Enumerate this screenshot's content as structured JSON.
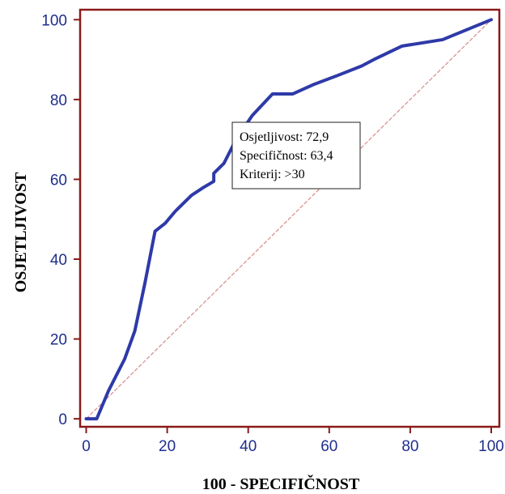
{
  "chart_data": {
    "type": "line",
    "xlabel": "100 - SPECIFIČNOST",
    "ylabel": "OSJETLJIVOST",
    "xlim": [
      -1.5,
      102
    ],
    "ylim": [
      -2,
      102.5
    ],
    "xticks": [
      0,
      20,
      40,
      60,
      80,
      100
    ],
    "yticks": [
      0,
      20,
      40,
      60,
      80,
      100
    ],
    "xtick_labels": [
      "0",
      "20",
      "40",
      "60",
      "80",
      "100"
    ],
    "ytick_labels": [
      "0",
      "20",
      "40",
      "60",
      "80",
      "100"
    ],
    "grid": false,
    "colors": {
      "curve": "#2e3aa8",
      "reference": "#d98a8a",
      "frame": "#8b1a1a",
      "ticks": "#1f2e8c"
    },
    "series": [
      {
        "x": [
          0,
          2.6,
          5.5,
          9.5,
          12,
          14.5,
          17,
          19.5,
          22,
          26,
          29,
          31.5,
          31.5,
          34,
          37,
          41,
          46,
          51,
          56,
          62,
          68,
          71,
          78,
          88,
          100
        ],
        "y": [
          0,
          0,
          7,
          15,
          22,
          34,
          47,
          49,
          52,
          56,
          58,
          59.5,
          61.5,
          64,
          70,
          76,
          81.4,
          81.4,
          83.7,
          86,
          88.4,
          90,
          93.4,
          95,
          100
        ]
      },
      {
        "x": [
          0,
          100
        ],
        "y": [
          0,
          100
        ]
      }
    ],
    "annotation": {
      "lines": [
        "Osjetljivost: 72,9",
        "Specifičnost: 63,4",
        "Kriterij: >30"
      ]
    }
  }
}
